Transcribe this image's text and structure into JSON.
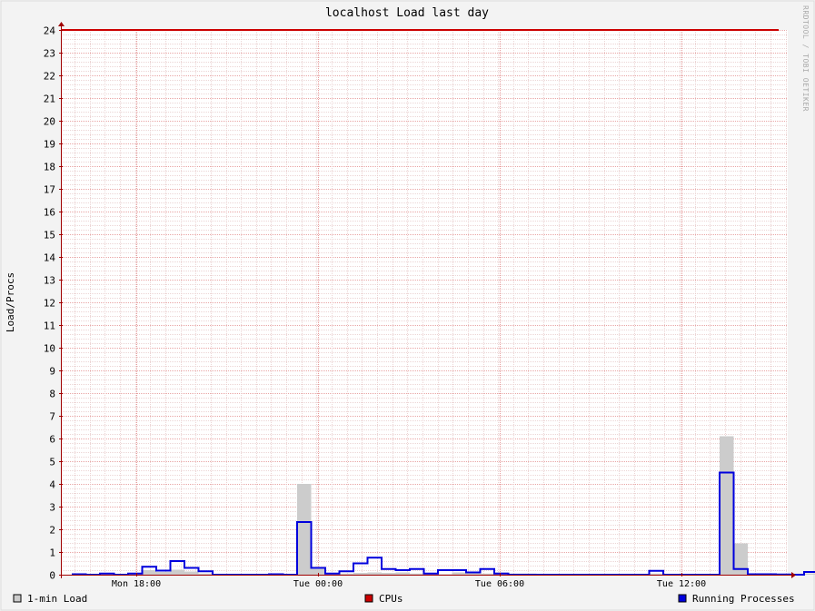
{
  "chart_data": {
    "type": "area",
    "title": "localhost Load last day",
    "ylabel": "Load/Procs",
    "xlabel": "",
    "ylim": [
      0,
      24
    ],
    "y_ticks": [
      0,
      1,
      2,
      3,
      4,
      5,
      6,
      7,
      8,
      9,
      10,
      11,
      12,
      13,
      14,
      15,
      16,
      17,
      18,
      19,
      20,
      21,
      22,
      23,
      24
    ],
    "x_tick_labels": [
      "Mon 18:00",
      "Tue 00:00",
      "Tue 06:00",
      "Tue 12:00"
    ],
    "watermark": "RRDTOOL / TOBI OETIKER",
    "grid": true,
    "legend_position": "bottom",
    "colors": {
      "background": "#f3f3f3",
      "canvas": "#ffffff",
      "minor_grid": "#e4c4c4",
      "major_grid": "#e79c9c",
      "load_area": "#cccccc",
      "load_edge": "#b4b4b4",
      "cpus_line": "#cc0000",
      "running_line": "#0000dd",
      "axis_arrow": "#a00000"
    },
    "series": [
      {
        "name": "1-min Load",
        "style": "area",
        "color": "#cccccc",
        "values": [
          0.02,
          0,
          0.05,
          0,
          0.05,
          0.2,
          0.12,
          0.22,
          0.14,
          0.05,
          0.03,
          0.01,
          0,
          0,
          0.02,
          0,
          4.0,
          0.25,
          0.05,
          0.05,
          0.08,
          0.1,
          0.08,
          0.1,
          0.05,
          0.05,
          0.02,
          0.1,
          0.08,
          0.05,
          0.1,
          0.05,
          0.05,
          0,
          0,
          0,
          0,
          0,
          0,
          0,
          0,
          0.05,
          0,
          0,
          0,
          0,
          6.1,
          1.38,
          0.03,
          0.02,
          0.01,
          0,
          0.05
        ]
      },
      {
        "name": "CPUs",
        "style": "line",
        "color": "#cc0000",
        "constant": 24
      },
      {
        "name": "Running Processes",
        "style": "step",
        "color": "#0000dd",
        "values": [
          0.02,
          0,
          0.05,
          0,
          0.05,
          0.35,
          0.18,
          0.6,
          0.3,
          0.15,
          0,
          0,
          0,
          0,
          0.02,
          0,
          2.32,
          0.3,
          0.05,
          0.15,
          0.5,
          0.75,
          0.25,
          0.2,
          0.25,
          0.05,
          0.2,
          0.2,
          0.1,
          0.25,
          0.05,
          0,
          0,
          0,
          0,
          0,
          0,
          0,
          0,
          0,
          0,
          0.17,
          0,
          0,
          0,
          0,
          4.5,
          0.25,
          0.02,
          0.02,
          0.01,
          0,
          0.12
        ]
      }
    ]
  }
}
